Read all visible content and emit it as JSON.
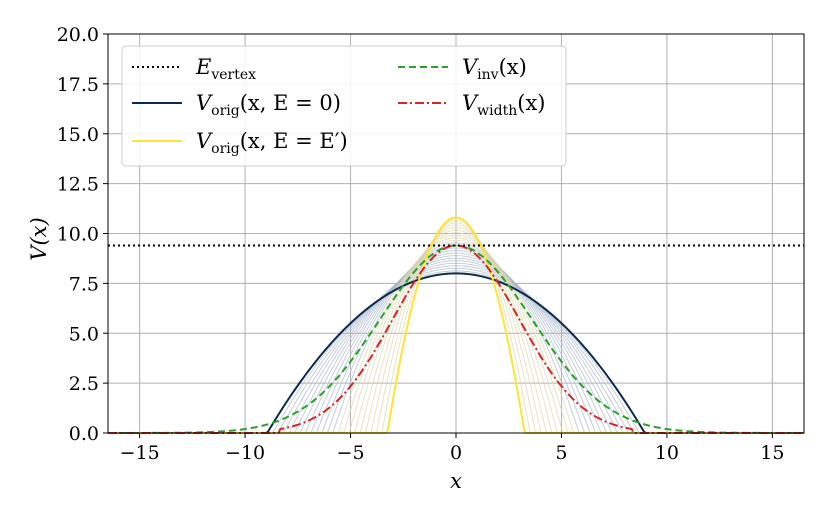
{
  "chart_data": {
    "type": "line",
    "title": "",
    "xlabel": "x",
    "ylabel": "V(x)",
    "xlim": [
      -16.5,
      16.5
    ],
    "ylim": [
      0.0,
      20.0
    ],
    "grid": true,
    "legend_position": "top-left",
    "xticks": [
      -15,
      -10,
      -5,
      0,
      5,
      10,
      15
    ],
    "xtick_labels": [
      "−15",
      "−10",
      "−5",
      "0",
      "5",
      "10",
      "15"
    ],
    "yticks": [
      0.0,
      2.5,
      5.0,
      7.5,
      10.0,
      12.5,
      15.0,
      17.5,
      20.0
    ],
    "ytick_labels": [
      "0.0",
      "2.5",
      "5.0",
      "7.5",
      "10.0",
      "12.5",
      "15.0",
      "17.5",
      "20.0"
    ],
    "colors": {
      "vertex": "#000000",
      "orig_e0": "#0b2a50",
      "orig_eprime": "#ffe433",
      "family": "#a9b7c9",
      "inv": "#2ca02c",
      "width": "#d62728"
    },
    "series": [
      {
        "name": "E_vertex",
        "style": "dotted",
        "kind": "horizontal",
        "y": 9.4
      },
      {
        "name": "V_orig(x, E=0)",
        "style": "solid",
        "kind": "parabola",
        "peak": 8.0,
        "half_width": 8.95
      },
      {
        "name": "V_orig(x, E=E')",
        "style": "solid",
        "kind": "parabola",
        "peak": 10.8,
        "half_width": 3.25
      },
      {
        "name": "V_inv(x)",
        "style": "dashed",
        "kind": "gaussian",
        "peak": 9.4,
        "sigma": 3.6
      },
      {
        "name": "V_width(x)",
        "style": "dashdot",
        "kind": "gaussian",
        "peak": 9.4,
        "sigma": 3.0,
        "cutoff": 8.4
      }
    ],
    "family_count": 22
  },
  "legend": {
    "e_vertex": {
      "main": "E",
      "sub": "vertex"
    },
    "orig_e0": {
      "main": "V",
      "sub": "orig",
      "tail": "(x, E = 0)"
    },
    "orig_eprime": {
      "main": "V",
      "sub": "orig",
      "tail": "(x, E = E′)"
    },
    "inv": {
      "main": "V",
      "sub": "inv",
      "tail": "(x)"
    },
    "width": {
      "main": "V",
      "sub": "width",
      "tail": "(x)"
    }
  }
}
